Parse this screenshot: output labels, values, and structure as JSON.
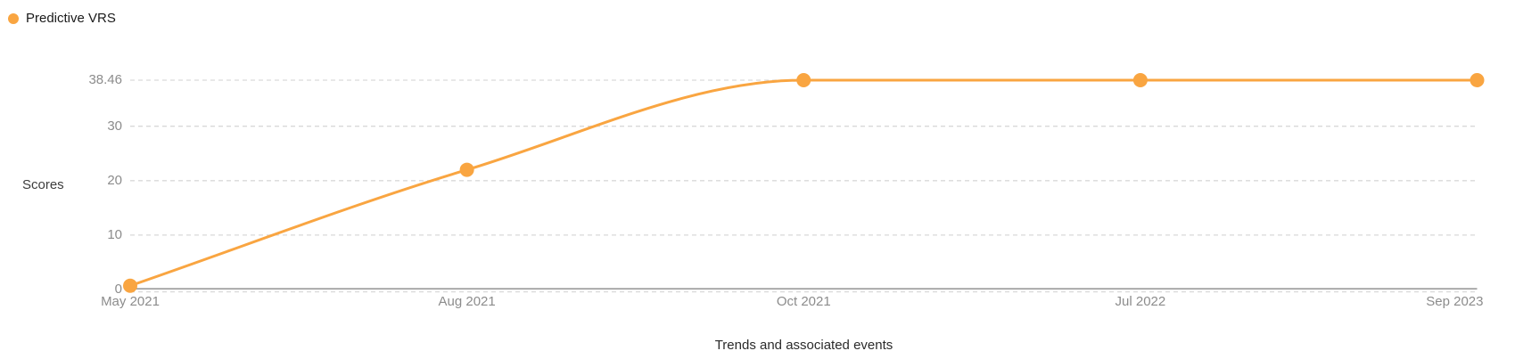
{
  "legend": {
    "items": [
      {
        "label": "Predictive VRS",
        "color": "#F9A541"
      }
    ]
  },
  "y_axis": {
    "title": "Scores",
    "ticks": [
      {
        "label": "38.46",
        "value": 38.46
      },
      {
        "label": "30",
        "value": 30
      },
      {
        "label": "20",
        "value": 20
      },
      {
        "label": "10",
        "value": 10
      },
      {
        "label": "0",
        "value": 0
      }
    ]
  },
  "x_axis": {
    "title": "Trends and associated events",
    "categories": [
      "May 2021",
      "Aug 2021",
      "Oct 2021",
      "Jul 2022",
      "Sep 2023"
    ]
  },
  "chart_data": {
    "type": "line",
    "categories": [
      "May 2021",
      "Aug 2021",
      "Oct 2021",
      "Jul 2022",
      "Sep 2023"
    ],
    "series": [
      {
        "name": "Predictive VRS",
        "color": "#F9A541",
        "values": [
          0.7,
          22,
          38.46,
          38.46,
          38.46
        ]
      }
    ],
    "title": "",
    "xlabel": "Trends and associated events",
    "ylabel": "Scores",
    "ylim": [
      0,
      38.46
    ],
    "yticks": [
      0,
      10,
      20,
      30,
      38.46
    ],
    "grid": "horizontal-dashed",
    "legend_position": "top-left",
    "curve": "monotone",
    "markers": true
  },
  "colors": {
    "accent": "#F9A541",
    "grid_line": "#D9D9D9",
    "axis_line": "#9B9B9B",
    "tick_text": "#8C8C8C",
    "y_title_text": "#3D3D3D",
    "x_title_text": "#2B2B2B",
    "legend_text": "#1A1A1A"
  }
}
